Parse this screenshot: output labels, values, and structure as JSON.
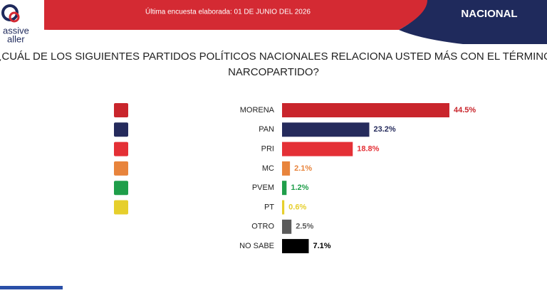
{
  "header": {
    "logo_top": "assive",
    "logo_bottom": "aller",
    "survey_date": "Última encuesta elaborada: 01 DE JUNIO DEL 2026",
    "scope": "NACIONAL"
  },
  "chart_data": {
    "type": "hbar",
    "title": "¿CUÁL DE LOS SIGUIENTES PARTIDOS POLÍTICOS NACIONALES RELACIONA USTED MÁS CON EL TÉRMINO NARCOPARTIDO?",
    "categories": [
      "MORENA",
      "PAN",
      "PRI",
      "MC",
      "PVEM",
      "PT",
      "OTRO",
      "NO SABE"
    ],
    "values": [
      44.5,
      23.2,
      18.8,
      2.1,
      1.2,
      0.6,
      2.5,
      7.1
    ],
    "value_labels": [
      "44.5%",
      "23.2%",
      "18.8%",
      "2.1%",
      "1.2%",
      "0.6%",
      "2.5%",
      "7.1%"
    ],
    "colors": [
      "#c9252c",
      "#252b5c",
      "#e43036",
      "#e8843c",
      "#1f9e4a",
      "#e6cf2c",
      "#5b5b5b",
      "#000000"
    ]
  }
}
